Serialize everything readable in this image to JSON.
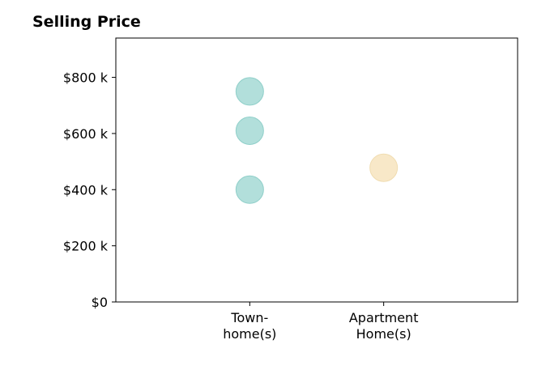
{
  "chart_data": {
    "type": "scatter",
    "title": "Selling Price",
    "xlabel": "",
    "ylabel": "",
    "categories": [
      "Town-\nhome(s)",
      "Apartment\nHome(s)"
    ],
    "category_positions": [
      1,
      2
    ],
    "xlim": [
      0,
      3
    ],
    "ylim": [
      0,
      940000
    ],
    "y_ticks": [
      0,
      200000,
      400000,
      600000,
      800000
    ],
    "y_tick_labels": [
      "$0",
      "$200 k",
      "$400 k",
      "$600 k",
      "$800 k"
    ],
    "grid": false,
    "series": [
      {
        "color": "#b2dfdb",
        "edge_color": "#8fcfc9",
        "points": [
          [
            1,
            750000
          ],
          [
            1,
            610000
          ],
          [
            1,
            400000
          ]
        ]
      },
      {
        "color": "#f8e8c8",
        "edge_color": "#f0dcb0",
        "points": [
          [
            2,
            478000
          ]
        ]
      }
    ]
  }
}
